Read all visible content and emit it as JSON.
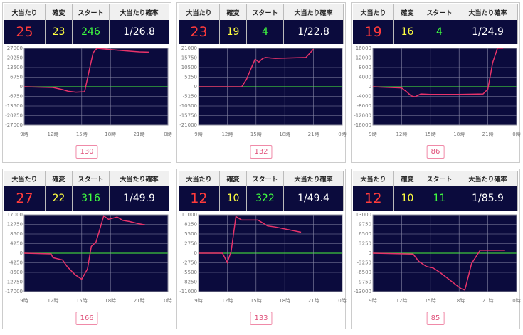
{
  "stat_colors": [
    "#ff3b3b",
    "#ffff40",
    "#40ff40",
    "#ffffff"
  ],
  "panels": [
    {
      "headers": [
        "大当たり",
        "確変",
        "スタート",
        "大当たり確率"
      ],
      "stats": [
        25,
        23,
        246,
        "1/26.8"
      ],
      "number": 130,
      "chart_data": {
        "type": "line",
        "x": [
          9,
          12,
          13,
          13.6,
          14.4,
          15.3,
          15.8,
          16.2,
          16.6,
          18.2,
          20,
          21,
          22
        ],
        "series": [
          {
            "color": "#e8336a",
            "values": [
              0,
              -500,
              -2000,
              -3200,
              -3800,
              -3500,
              12000,
              24000,
              27000,
              26000,
              25000,
              24500,
              24300
            ]
          }
        ],
        "xlim": [
          9,
          24
        ],
        "xticks": [
          {
            "value": 9,
            "label": "9時"
          },
          {
            "value": 12,
            "label": "12時"
          },
          {
            "value": 15,
            "label": "15時"
          },
          {
            "value": 18,
            "label": "18時"
          },
          {
            "value": 21,
            "label": "21時"
          },
          {
            "value": 24,
            "label": "0時"
          }
        ],
        "ylim": [
          -27000,
          27000
        ],
        "yticks": [
          27000,
          20250,
          13500,
          6750,
          0,
          -6750,
          -13500,
          -20250,
          -27000
        ]
      }
    },
    {
      "headers": [
        "大当たり",
        "確変",
        "スタート",
        "大当たり確率"
      ],
      "stats": [
        23,
        19,
        4,
        "1/22.8"
      ],
      "number": 132,
      "chart_data": {
        "type": "line",
        "x": [
          9,
          13.5,
          14,
          14.4,
          14.9,
          15.3,
          15.7,
          16,
          17,
          20.2,
          21
        ],
        "series": [
          {
            "color": "#e8336a",
            "values": [
              0,
              0,
              4000,
              9000,
              15000,
              13500,
              15500,
              16000,
              15500,
              16000,
              20500
            ]
          }
        ],
        "xlim": [
          9,
          24
        ],
        "xticks": [
          {
            "value": 9,
            "label": "9時"
          },
          {
            "value": 12,
            "label": "12時"
          },
          {
            "value": 15,
            "label": "15時"
          },
          {
            "value": 18,
            "label": "18時"
          },
          {
            "value": 21,
            "label": "21時"
          },
          {
            "value": 24,
            "label": "0時"
          }
        ],
        "ylim": [
          -21000,
          21000
        ],
        "yticks": [
          21000,
          15750,
          10500,
          5250,
          0,
          -5250,
          -10500,
          -15750,
          -21000
        ]
      }
    },
    {
      "headers": [
        "大当たり",
        "確変",
        "スタート",
        "大当たり確率"
      ],
      "stats": [
        19,
        16,
        4,
        "1/24.9"
      ],
      "number": 86,
      "chart_data": {
        "type": "line",
        "x": [
          9,
          12,
          12.5,
          13,
          13.4,
          14,
          15,
          18,
          20.5,
          21,
          21.5,
          22,
          22.6
        ],
        "series": [
          {
            "color": "#e8336a",
            "values": [
              0,
              -500,
              -2000,
              -3800,
              -4200,
              -3000,
              -3200,
              -3200,
              -3000,
              -1000,
              10000,
              16000,
              16000
            ]
          }
        ],
        "xlim": [
          9,
          24
        ],
        "xticks": [
          {
            "value": 9,
            "label": "9時"
          },
          {
            "value": 12,
            "label": "12時"
          },
          {
            "value": 15,
            "label": "15時"
          },
          {
            "value": 18,
            "label": "18時"
          },
          {
            "value": 21,
            "label": "21時"
          },
          {
            "value": 24,
            "label": "0時"
          }
        ],
        "ylim": [
          -16000,
          16000
        ],
        "yticks": [
          16000,
          12000,
          8000,
          4000,
          0,
          -4000,
          -8000,
          -12000,
          -16000
        ]
      }
    },
    {
      "headers": [
        "大当たり",
        "確変",
        "スタート",
        "大当たり確率"
      ],
      "stats": [
        27,
        22,
        316,
        "1/49.9"
      ],
      "number": 166,
      "chart_data": {
        "type": "line",
        "x": [
          9,
          11.8,
          12,
          13,
          13.5,
          14.3,
          15,
          15.6,
          16,
          16.5,
          17.3,
          17.8,
          18.7,
          19.3,
          20,
          21,
          21.6
        ],
        "series": [
          {
            "color": "#e8336a",
            "values": [
              0,
              -300,
              -2000,
              -3000,
              -6000,
              -9500,
              -11500,
              -7000,
              3000,
              5000,
              16500,
              15000,
              16000,
              14500,
              14000,
              13000,
              12500
            ]
          }
        ],
        "xlim": [
          9,
          24
        ],
        "xticks": [
          {
            "value": 9,
            "label": "9時"
          },
          {
            "value": 12,
            "label": "12時"
          },
          {
            "value": 15,
            "label": "15時"
          },
          {
            "value": 18,
            "label": "18時"
          },
          {
            "value": 21,
            "label": "21時"
          },
          {
            "value": 24,
            "label": "0時"
          }
        ],
        "ylim": [
          -17000,
          17000
        ],
        "yticks": [
          17000,
          12750,
          8500,
          4250,
          0,
          -4250,
          -8500,
          -12750,
          -17000
        ]
      }
    },
    {
      "headers": [
        "大当たり",
        "確変",
        "スタート",
        "大当たり確率"
      ],
      "stats": [
        12,
        10,
        322,
        "1/49.4"
      ],
      "number": 133,
      "chart_data": {
        "type": "line",
        "x": [
          9,
          11.5,
          12,
          12.4,
          12.9,
          13.5,
          15.2,
          16.2,
          17,
          19.7
        ],
        "series": [
          {
            "color": "#e8336a",
            "values": [
              0,
              0,
              -2700,
              500,
              10500,
              9500,
              9500,
              7800,
              7500,
              6000
            ]
          }
        ],
        "xlim": [
          9,
          24
        ],
        "xticks": [
          {
            "value": 9,
            "label": "9時"
          },
          {
            "value": 12,
            "label": "12時"
          },
          {
            "value": 15,
            "label": "15時"
          },
          {
            "value": 18,
            "label": "18時"
          },
          {
            "value": 21,
            "label": "21時"
          },
          {
            "value": 24,
            "label": "0時"
          }
        ],
        "ylim": [
          -11000,
          11000
        ],
        "yticks": [
          11000,
          8250,
          5500,
          2750,
          0,
          -2750,
          -5500,
          -8250,
          -11000
        ]
      }
    },
    {
      "headers": [
        "大当たり",
        "確変",
        "スタート",
        "大当たり確率"
      ],
      "stats": [
        12,
        10,
        11,
        "1/85.9"
      ],
      "number": 85,
      "chart_data": {
        "type": "line",
        "x": [
          9,
          13.2,
          13.8,
          14.6,
          15.3,
          16,
          17.2,
          18.2,
          18.6,
          19.3,
          20.2,
          22.8
        ],
        "series": [
          {
            "color": "#e8336a",
            "values": [
              0,
              -300,
              -2800,
              -4500,
              -5000,
              -6500,
              -9500,
              -12000,
              -12500,
              -3500,
              1000,
              1000
            ]
          }
        ],
        "xlim": [
          9,
          24
        ],
        "xticks": [
          {
            "value": 9,
            "label": "9時"
          },
          {
            "value": 12,
            "label": "12時"
          },
          {
            "value": 15,
            "label": "15時"
          },
          {
            "value": 18,
            "label": "18時"
          },
          {
            "value": 21,
            "label": "21時"
          },
          {
            "value": 24,
            "label": "0時"
          }
        ],
        "ylim": [
          -13000,
          13000
        ],
        "yticks": [
          13000,
          9750,
          6500,
          3250,
          0,
          -3250,
          -6500,
          -9750,
          -13000
        ]
      }
    }
  ]
}
